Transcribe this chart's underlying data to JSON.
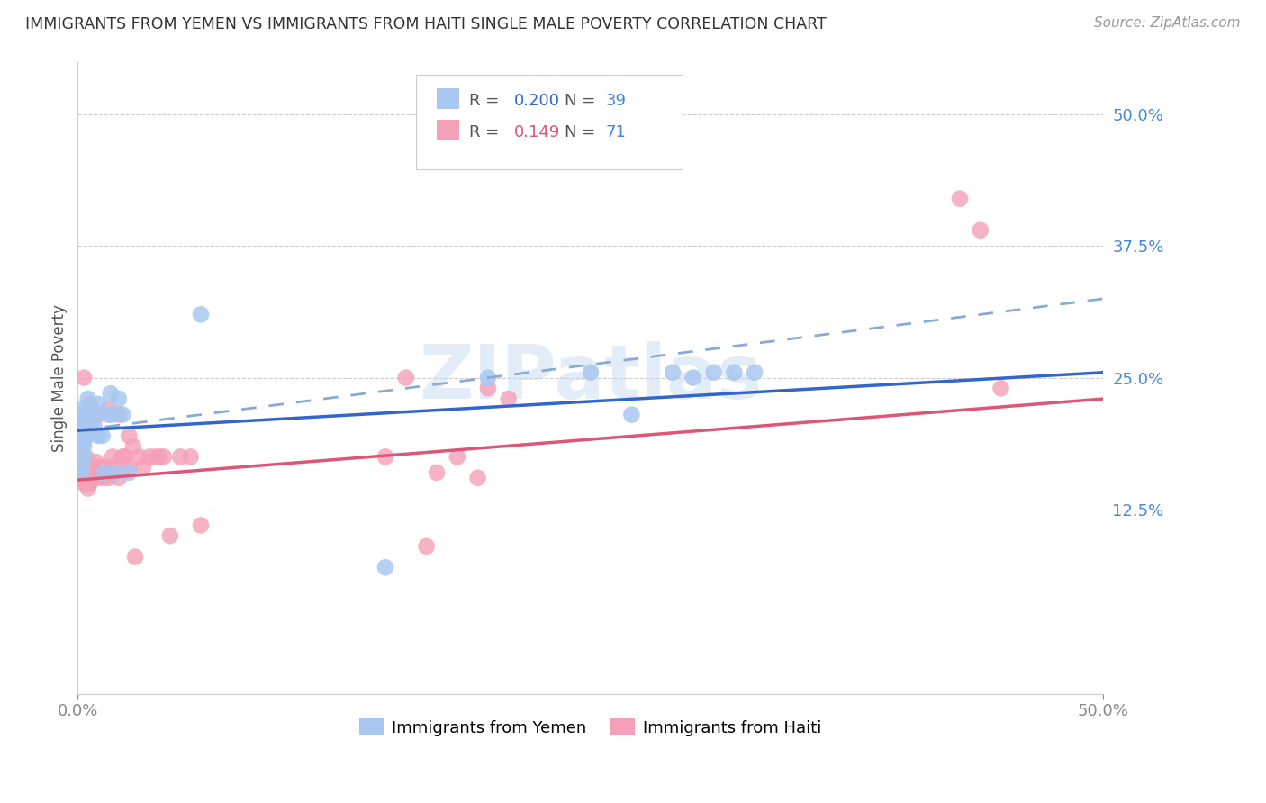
{
  "title": "IMMIGRANTS FROM YEMEN VS IMMIGRANTS FROM HAITI SINGLE MALE POVERTY CORRELATION CHART",
  "source": "Source: ZipAtlas.com",
  "ylabel": "Single Male Poverty",
  "right_yticks": [
    "50.0%",
    "37.5%",
    "25.0%",
    "12.5%"
  ],
  "right_ytick_vals": [
    0.5,
    0.375,
    0.25,
    0.125
  ],
  "xlim": [
    0.0,
    0.5
  ],
  "ylim": [
    -0.05,
    0.55
  ],
  "legend_r_yemen": "0.200",
  "legend_n_yemen": "39",
  "legend_r_haiti": "0.149",
  "legend_n_haiti": "71",
  "color_yemen": "#a8c8f0",
  "color_haiti": "#f4a0b8",
  "color_yemen_line": "#3366cc",
  "color_haiti_line": "#dd5577",
  "color_dashed": "#88aad4",
  "color_right_labels": "#4488dd",
  "watermark": "ZIPatlas",
  "yemen_x": [
    0.002,
    0.002,
    0.002,
    0.002,
    0.002,
    0.002,
    0.003,
    0.003,
    0.003,
    0.003,
    0.004,
    0.004,
    0.005,
    0.005,
    0.006,
    0.007,
    0.008,
    0.009,
    0.01,
    0.01,
    0.012,
    0.013,
    0.015,
    0.016,
    0.017,
    0.018,
    0.02,
    0.022,
    0.025,
    0.06,
    0.15,
    0.2,
    0.25,
    0.27,
    0.29,
    0.3,
    0.31,
    0.32,
    0.33
  ],
  "yemen_y": [
    0.205,
    0.215,
    0.22,
    0.16,
    0.165,
    0.17,
    0.175,
    0.185,
    0.19,
    0.2,
    0.195,
    0.21,
    0.215,
    0.23,
    0.22,
    0.2,
    0.205,
    0.215,
    0.225,
    0.195,
    0.195,
    0.16,
    0.215,
    0.235,
    0.215,
    0.16,
    0.23,
    0.215,
    0.16,
    0.31,
    0.07,
    0.25,
    0.255,
    0.215,
    0.255,
    0.25,
    0.255,
    0.255,
    0.255
  ],
  "haiti_x": [
    0.001,
    0.001,
    0.001,
    0.001,
    0.001,
    0.002,
    0.002,
    0.002,
    0.002,
    0.002,
    0.003,
    0.003,
    0.003,
    0.003,
    0.003,
    0.004,
    0.004,
    0.004,
    0.004,
    0.005,
    0.005,
    0.005,
    0.006,
    0.006,
    0.007,
    0.007,
    0.007,
    0.008,
    0.008,
    0.009,
    0.01,
    0.01,
    0.01,
    0.011,
    0.012,
    0.013,
    0.014,
    0.015,
    0.015,
    0.016,
    0.017,
    0.018,
    0.02,
    0.02,
    0.022,
    0.023,
    0.025,
    0.025,
    0.027,
    0.028,
    0.03,
    0.032,
    0.035,
    0.038,
    0.04,
    0.042,
    0.045,
    0.05,
    0.055,
    0.06,
    0.15,
    0.16,
    0.17,
    0.175,
    0.185,
    0.195,
    0.2,
    0.21,
    0.43,
    0.44,
    0.45
  ],
  "haiti_y": [
    0.16,
    0.165,
    0.17,
    0.175,
    0.18,
    0.155,
    0.16,
    0.165,
    0.17,
    0.215,
    0.15,
    0.155,
    0.16,
    0.165,
    0.25,
    0.15,
    0.155,
    0.165,
    0.175,
    0.145,
    0.155,
    0.165,
    0.15,
    0.225,
    0.155,
    0.165,
    0.215,
    0.155,
    0.165,
    0.17,
    0.155,
    0.165,
    0.215,
    0.16,
    0.165,
    0.155,
    0.165,
    0.155,
    0.22,
    0.165,
    0.175,
    0.165,
    0.155,
    0.215,
    0.175,
    0.175,
    0.165,
    0.195,
    0.185,
    0.08,
    0.175,
    0.165,
    0.175,
    0.175,
    0.175,
    0.175,
    0.1,
    0.175,
    0.175,
    0.11,
    0.175,
    0.25,
    0.09,
    0.16,
    0.175,
    0.155,
    0.24,
    0.23,
    0.42,
    0.39,
    0.24
  ],
  "trend_yemen_start": 0.2,
  "trend_yemen_end": 0.255,
  "trend_haiti_start": 0.153,
  "trend_haiti_end": 0.23,
  "trend_dashed_start": 0.2,
  "trend_dashed_end": 0.325
}
